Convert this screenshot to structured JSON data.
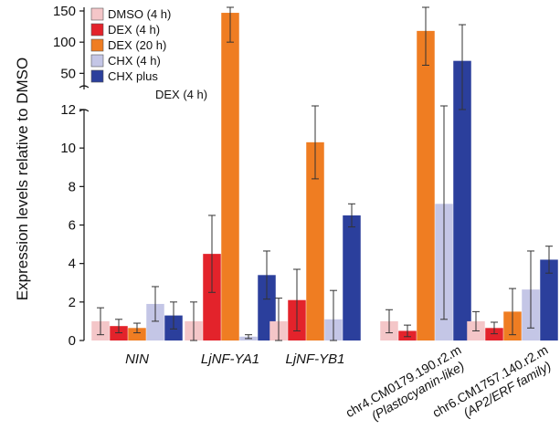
{
  "chart_data": {
    "type": "bar",
    "ylabel": "Expression levels relative to DMSO",
    "axis_break": {
      "lower_range": [
        0,
        12
      ],
      "upper_range": [
        30,
        150
      ],
      "lower_ticks": [
        0,
        2,
        4,
        6,
        8,
        10,
        12
      ],
      "upper_ticks": [
        50,
        100,
        150
      ]
    },
    "categories": [
      {
        "label": "NIN",
        "italic": true
      },
      {
        "label": "LjNF-YA1",
        "italic": true
      },
      {
        "label": "LjNF-YB1",
        "italic": true
      },
      {
        "label": "chr4.CM0179.190.r2.m",
        "sub": "(Plastocyanin-like)",
        "rotated": true
      },
      {
        "label": "chr6.CM1757.140.r2.m",
        "sub": "(AP2/ERF family)",
        "rotated": true
      }
    ],
    "series": [
      {
        "name": "DMSO (4 h)",
        "color": "#f4c6c8",
        "values": [
          1.0,
          1.0,
          1.0,
          1.0,
          1.0
        ],
        "errors": [
          0.7,
          1.0,
          1.2,
          0.6,
          0.5
        ]
      },
      {
        "name": "DEX (4 h)",
        "color": "#e3232b",
        "values": [
          0.75,
          4.5,
          2.1,
          0.5,
          0.65
        ],
        "errors": [
          0.35,
          2.0,
          1.6,
          0.3,
          0.3
        ]
      },
      {
        "name": "DEX (20 h)",
        "color": "#ef7d22",
        "values": [
          0.65,
          147,
          10.3,
          118,
          1.5
        ],
        "errors": [
          0.25,
          47,
          1.9,
          55,
          1.2
        ]
      },
      {
        "name": "CHX (4 h)",
        "color": "#c4c6e6",
        "values": [
          1.9,
          0.2,
          1.1,
          7.1,
          2.65
        ],
        "errors": [
          0.9,
          0.1,
          1.5,
          6.0,
          2.0
        ]
      },
      {
        "name": "CHX plus DEX (4 h)",
        "color": "#2b3f9c",
        "values": [
          1.3,
          3.4,
          6.5,
          70,
          4.2
        ],
        "errors": [
          0.7,
          1.25,
          0.6,
          58,
          0.7
        ]
      }
    ],
    "legend": {
      "placement": "top-left",
      "items": [
        "DMSO (4 h)",
        "DEX (4 h)",
        "DEX (20 h)",
        "CHX (4 h)",
        "CHX plus"
      ],
      "continuation": "DEX (4 h)"
    }
  }
}
